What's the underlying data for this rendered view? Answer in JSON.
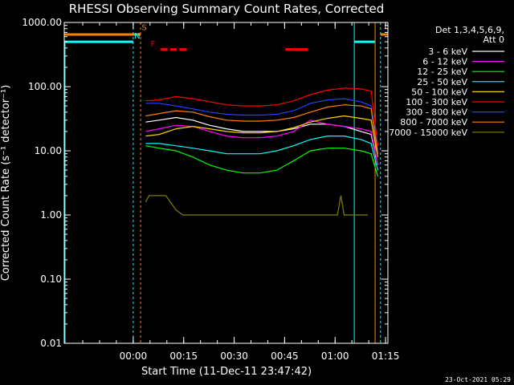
{
  "chart_data": {
    "type": "line",
    "title": "RHESSI Observing Summary Count Rates, Corrected",
    "xlabel": "Start Time (11-Dec-11 23:47:42)",
    "ylabel": "Corrected Count Rate (s⁻¹ detector⁻¹)",
    "ylim": [
      0.01,
      1000
    ],
    "xlim_minutes": [
      -8.2,
      88.0
    ],
    "y_scale": "log",
    "y_ticks": [
      {
        "value": 0.01,
        "label": "0.01"
      },
      {
        "value": 0.1,
        "label": "0.10"
      },
      {
        "value": 1,
        "label": "1.00"
      },
      {
        "value": 10,
        "label": "10.00"
      },
      {
        "value": 100,
        "label": "100.00"
      },
      {
        "value": 1000,
        "label": "1000.00"
      }
    ],
    "x_ticks": [
      {
        "value": 12.3,
        "label": "00:00"
      },
      {
        "value": 27.3,
        "label": "00:15"
      },
      {
        "value": 42.3,
        "label": "00:30"
      },
      {
        "value": 57.3,
        "label": "00:45"
      },
      {
        "value": 72.3,
        "label": "01:00"
      },
      {
        "value": 87.3,
        "label": "01:15"
      }
    ],
    "legend_header": [
      "Det 1,3,4,5,6,9,",
      "Att 0"
    ],
    "series": [
      {
        "name": "3 - 6 keV",
        "color": "#ffffff",
        "x": [
          16,
          20,
          25,
          30,
          35,
          40,
          45,
          50,
          55,
          60,
          65,
          70,
          75,
          80,
          83,
          85
        ],
        "y": [
          28,
          30,
          33,
          30,
          25,
          22,
          20,
          20,
          20,
          22,
          26,
          26,
          24,
          20,
          18,
          6
        ]
      },
      {
        "name": "6 - 12 keV",
        "color": "#ff00ff",
        "x": [
          16,
          20,
          25,
          30,
          35,
          40,
          45,
          50,
          55,
          60,
          65,
          70,
          75,
          80,
          83,
          85
        ],
        "y": [
          20,
          22,
          25,
          24,
          20,
          17,
          16,
          16,
          17,
          20,
          30,
          26,
          24,
          22,
          20,
          6
        ]
      },
      {
        "name": "12 - 25 keV",
        "color": "#00ff00",
        "x": [
          16,
          20,
          25,
          30,
          35,
          40,
          45,
          50,
          55,
          60,
          65,
          70,
          75,
          80,
          83,
          85
        ],
        "y": [
          12,
          11,
          10,
          8,
          6,
          5,
          4.5,
          4.5,
          5,
          7,
          10,
          11,
          11,
          10,
          9,
          4
        ]
      },
      {
        "name": "25 - 50 keV",
        "color": "#00ffff",
        "x": [
          16,
          20,
          25,
          30,
          35,
          40,
          45,
          50,
          55,
          60,
          65,
          70,
          75,
          80,
          83,
          85
        ],
        "y": [
          13,
          13,
          12,
          11,
          10,
          9,
          9,
          9,
          10,
          12,
          15,
          17,
          17,
          15,
          13,
          5
        ]
      },
      {
        "name": "50 - 100 keV",
        "color": "#ffd000",
        "x": [
          16,
          20,
          25,
          30,
          35,
          40,
          45,
          50,
          55,
          60,
          65,
          70,
          75,
          80,
          83,
          85
        ],
        "y": [
          17,
          18,
          22,
          24,
          22,
          20,
          19,
          19,
          20,
          23,
          28,
          32,
          35,
          32,
          30,
          8
        ]
      },
      {
        "name": "100 - 300 keV",
        "color": "#ff0000",
        "x": [
          16,
          20,
          25,
          30,
          35,
          40,
          45,
          50,
          55,
          60,
          65,
          70,
          75,
          80,
          83,
          85
        ],
        "y": [
          60,
          62,
          70,
          65,
          58,
          52,
          50,
          50,
          52,
          60,
          75,
          88,
          95,
          92,
          85,
          12
        ]
      },
      {
        "name": "300 - 800 keV",
        "color": "#2040ff",
        "x": [
          16,
          20,
          25,
          30,
          35,
          40,
          45,
          50,
          55,
          60,
          65,
          70,
          75,
          80,
          83,
          85
        ],
        "y": [
          55,
          55,
          50,
          45,
          40,
          37,
          36,
          36,
          37,
          42,
          55,
          62,
          65,
          58,
          50,
          10
        ]
      },
      {
        "name": "800 - 7000 keV",
        "color": "#ff8000",
        "x": [
          16,
          20,
          25,
          30,
          35,
          40,
          45,
          50,
          55,
          60,
          65,
          70,
          75,
          80,
          83,
          85
        ],
        "y": [
          35,
          38,
          42,
          40,
          34,
          30,
          29,
          29,
          30,
          33,
          40,
          48,
          52,
          50,
          45,
          9
        ]
      },
      {
        "name": "7000 - 15000 keV",
        "color": "#808000",
        "x": [
          16,
          17,
          22,
          25,
          27,
          64,
          65,
          70,
          73,
          74,
          75,
          80,
          82
        ],
        "y": [
          1.6,
          2,
          2,
          1.2,
          1,
          1,
          1,
          1,
          1,
          2,
          1,
          1,
          1
        ]
      }
    ],
    "flag_segments": {
      "S": {
        "color": "#ff8000",
        "segments": [
          [
            -8.2,
            14.5
          ],
          [
            85.8,
            88.0
          ]
        ]
      },
      "N": {
        "color": "#00ffff",
        "segments": [
          [
            -8.2,
            12.3
          ],
          [
            78.0,
            84.2
          ]
        ]
      },
      "F": {
        "color": "#ff0000",
        "segments": [
          [
            20.5,
            22.5
          ],
          [
            23.3,
            25.3
          ],
          [
            26.0,
            28.2
          ],
          [
            57.5,
            64.2
          ]
        ]
      }
    },
    "flag_labels": [
      "S",
      "N",
      "F"
    ]
  },
  "footer": {
    "timestamp": "23-Oct-2021 05:29"
  }
}
